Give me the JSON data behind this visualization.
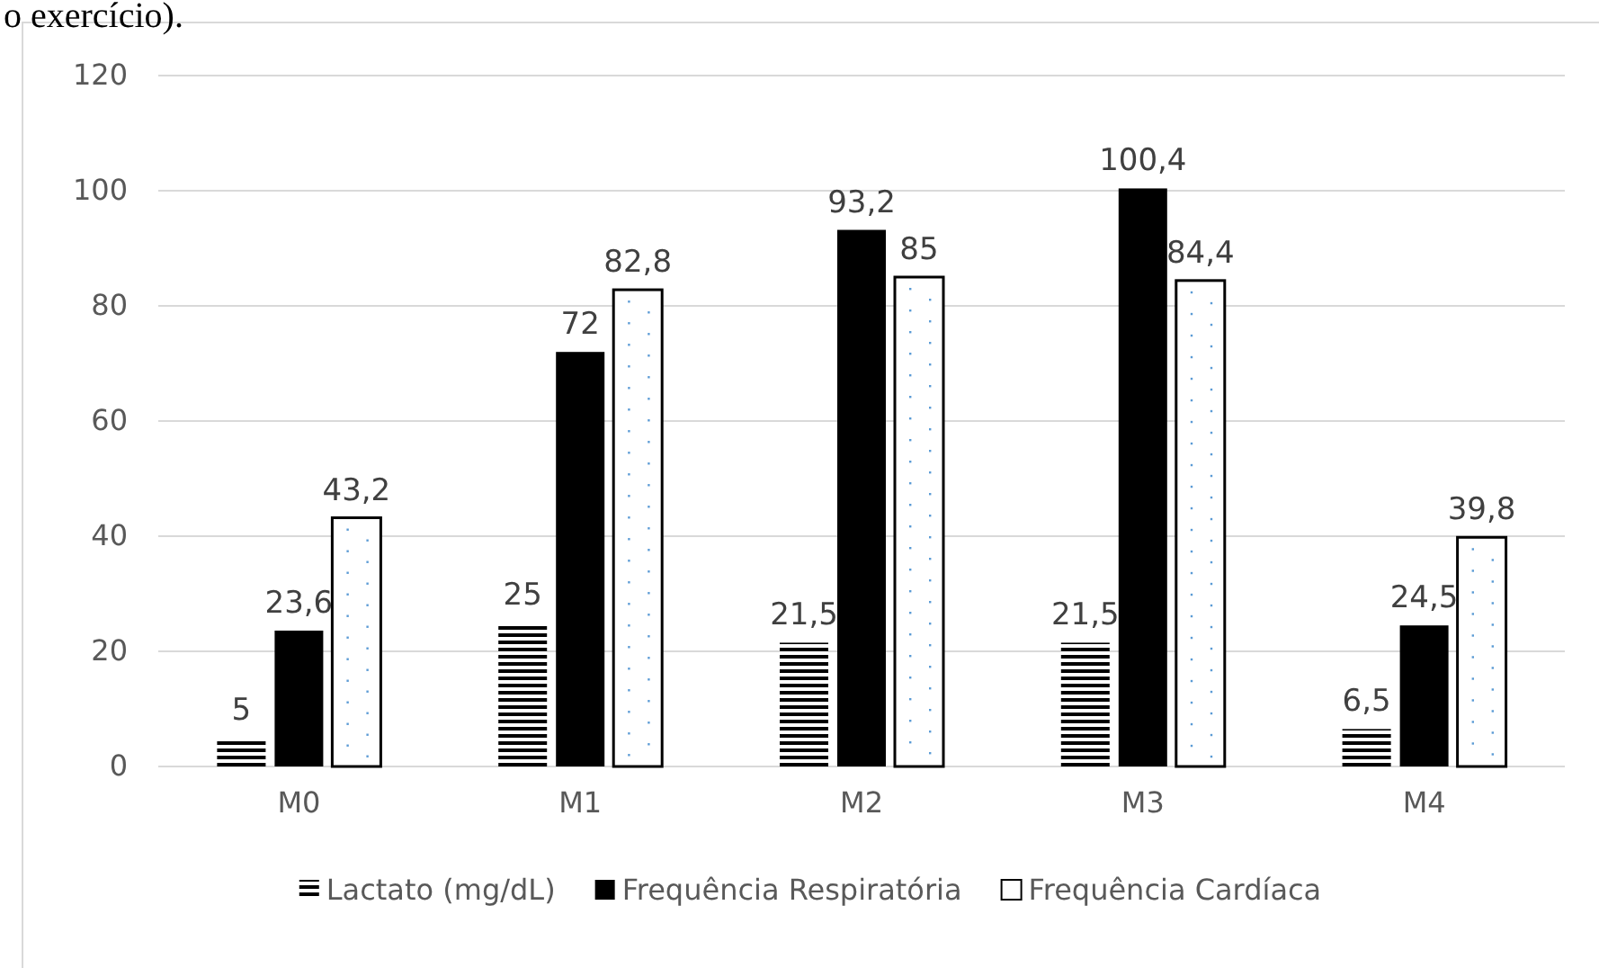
{
  "chart_data": {
    "type": "bar",
    "categories": [
      "M0",
      "M1",
      "M2",
      "M3",
      "M4"
    ],
    "series": [
      {
        "name": "Lactato (mg/dL)",
        "color": "#000000",
        "values": [
          5,
          25,
          21.5,
          21.5,
          6.5
        ],
        "value_labels": [
          "5",
          "25",
          "21,5",
          "21,5",
          "6,5"
        ]
      },
      {
        "name": "Frequência Respiratória",
        "color": "#000000",
        "values": [
          23.6,
          72,
          93.2,
          100.4,
          24.5
        ],
        "value_labels": [
          "23,6",
          "72",
          "93,2",
          "100,4",
          "24,5"
        ]
      },
      {
        "name": "Frequência Cardíaca",
        "color": "#ffffff",
        "values": [
          43.2,
          82.8,
          85,
          84.4,
          39.8
        ],
        "value_labels": [
          "43,2",
          "82,8",
          "85",
          "84,4",
          "39,8"
        ]
      }
    ],
    "ylim": [
      0,
      120
    ],
    "yticks": [
      0,
      20,
      40,
      60,
      80,
      100,
      120
    ],
    "grid": "y",
    "legend": "bottom",
    "annotations": [
      "o exercício)."
    ]
  }
}
